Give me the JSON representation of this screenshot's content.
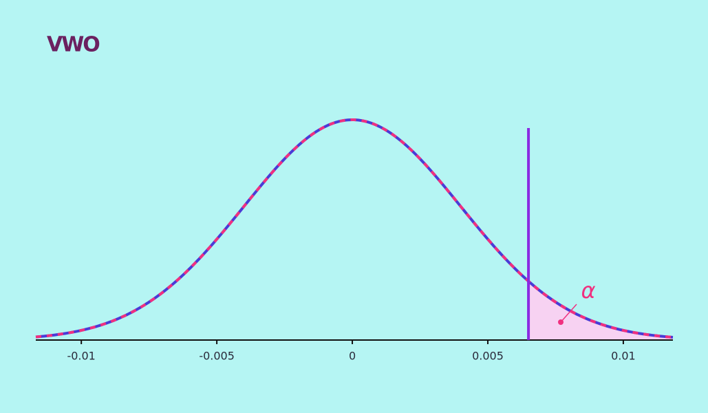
{
  "chart_data": {
    "type": "normal-curve",
    "logo": "VWO",
    "mean": 0,
    "sd": 0.004,
    "critical_value": 0.0065,
    "annotation": "α",
    "xlim": [
      -0.01168,
      0.01183
    ],
    "xticks": [
      -0.01,
      -0.005,
      0,
      0.005,
      0.01
    ],
    "curve_colors": [
      "#4a3bd6",
      "#f0307f"
    ],
    "critical_color": "#8a2be2",
    "area_color": "#f7d2f2"
  }
}
